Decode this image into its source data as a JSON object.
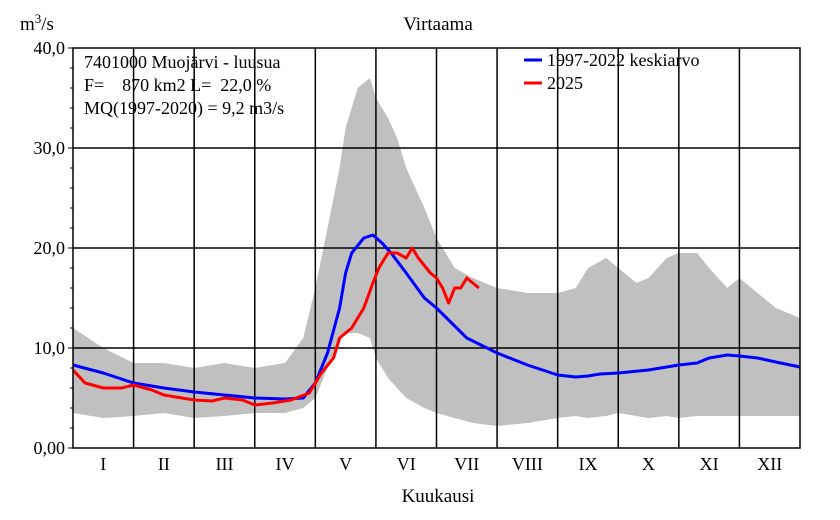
{
  "chart_data": {
    "type": "area",
    "title": "Virtaama",
    "ylabel": "m3/s",
    "ylabel_parts": {
      "base": "m",
      "sup": "3",
      "rest": "/s"
    },
    "xlabel": "Kuukausi",
    "ylim": [
      0,
      40
    ],
    "xlim": [
      0,
      12
    ],
    "y_ticks": [
      0,
      10,
      20,
      30,
      40
    ],
    "y_tick_labels": [
      "0,00",
      "10,0",
      "20,0",
      "30,0",
      "40,0"
    ],
    "months": [
      "I",
      "II",
      "III",
      "IV",
      "V",
      "VI",
      "VII",
      "VIII",
      "IX",
      "X",
      "XI",
      "XII"
    ],
    "grid": true,
    "legend_position": "top-right",
    "info_lines": [
      "7401000 Muojärvi - luusua",
      "F=    870 km2 L=  22,0 %",
      "MQ(1997-2020) = 9,2 m3/s"
    ],
    "band": {
      "name": "",
      "color": "#c0c0c0",
      "x": [
        0,
        0.5,
        1.0,
        1.5,
        2.0,
        2.5,
        3.0,
        3.5,
        3.8,
        4.0,
        4.2,
        4.4,
        4.5,
        4.7,
        4.9,
        5.0,
        5.2,
        5.35,
        5.5,
        5.8,
        6.0,
        6.3,
        6.6,
        7.0,
        7.5,
        8.0,
        8.3,
        8.5,
        8.8,
        9.0,
        9.3,
        9.5,
        9.8,
        10.0,
        10.3,
        10.5,
        10.8,
        11.0,
        11.3,
        11.6,
        12.0
      ],
      "upper": [
        12,
        10,
        8.5,
        8.5,
        8,
        8.5,
        8,
        8.5,
        11,
        16,
        22,
        28,
        32,
        36,
        37,
        35,
        33,
        31,
        28,
        24,
        21,
        18,
        17,
        16,
        15.5,
        15.5,
        16,
        18,
        19,
        18,
        16.5,
        17,
        19,
        19.5,
        19.5,
        18,
        16,
        17,
        15.5,
        14,
        13
      ],
      "lower": [
        3.5,
        3,
        3.2,
        3.5,
        3,
        3.2,
        3.5,
        3.5,
        4,
        5,
        8,
        11,
        11.5,
        11.5,
        11,
        9,
        7,
        6,
        5,
        4,
        3.5,
        3,
        2.5,
        2.2,
        2.5,
        3,
        3.2,
        3,
        3.2,
        3.5,
        3.2,
        3,
        3.2,
        3,
        3.2,
        3.2,
        3.2,
        3.2,
        3.2,
        3.2,
        3.2
      ]
    },
    "series": [
      {
        "name": "1997-2022 keskiarvo",
        "color": "#0000ff",
        "x": [
          0,
          0.5,
          1.0,
          1.5,
          2.0,
          2.5,
          3.0,
          3.5,
          3.8,
          4.0,
          4.2,
          4.4,
          4.5,
          4.6,
          4.8,
          4.95,
          5.1,
          5.25,
          5.5,
          5.8,
          6.0,
          6.5,
          7.0,
          7.5,
          8.0,
          8.3,
          8.5,
          8.7,
          9.0,
          9.5,
          10.0,
          10.3,
          10.5,
          10.8,
          11.0,
          11.3,
          11.6,
          12.0
        ],
        "y": [
          8.3,
          7.5,
          6.5,
          6,
          5.6,
          5.3,
          5,
          4.9,
          5,
          6.5,
          9.5,
          14,
          17.5,
          19.5,
          21,
          21.3,
          20.5,
          19.5,
          17.5,
          15,
          14,
          11,
          9.5,
          8.3,
          7.3,
          7.1,
          7.2,
          7.4,
          7.5,
          7.8,
          8.3,
          8.5,
          9,
          9.3,
          9.2,
          9,
          8.6,
          8.1
        ]
      },
      {
        "name": "2025",
        "color": "#ff0000",
        "x": [
          0,
          0.2,
          0.5,
          0.8,
          1.0,
          1.3,
          1.5,
          2.0,
          2.3,
          2.5,
          2.8,
          3.0,
          3.3,
          3.6,
          3.9,
          4.1,
          4.3,
          4.4,
          4.6,
          4.8,
          4.95,
          5.05,
          5.2,
          5.35,
          5.5,
          5.6,
          5.7,
          5.9,
          6.0,
          6.1,
          6.2,
          6.3,
          6.4,
          6.5,
          6.6,
          6.7
        ],
        "y": [
          7.8,
          6.5,
          6,
          6,
          6.3,
          5.8,
          5.3,
          4.8,
          4.7,
          5,
          4.8,
          4.3,
          4.5,
          4.8,
          5.5,
          7.5,
          9,
          11,
          12,
          14,
          16.5,
          18,
          19.5,
          19.5,
          19,
          20,
          19,
          17.5,
          17,
          16,
          14.5,
          16,
          16,
          17,
          16.5,
          16
        ]
      }
    ]
  }
}
